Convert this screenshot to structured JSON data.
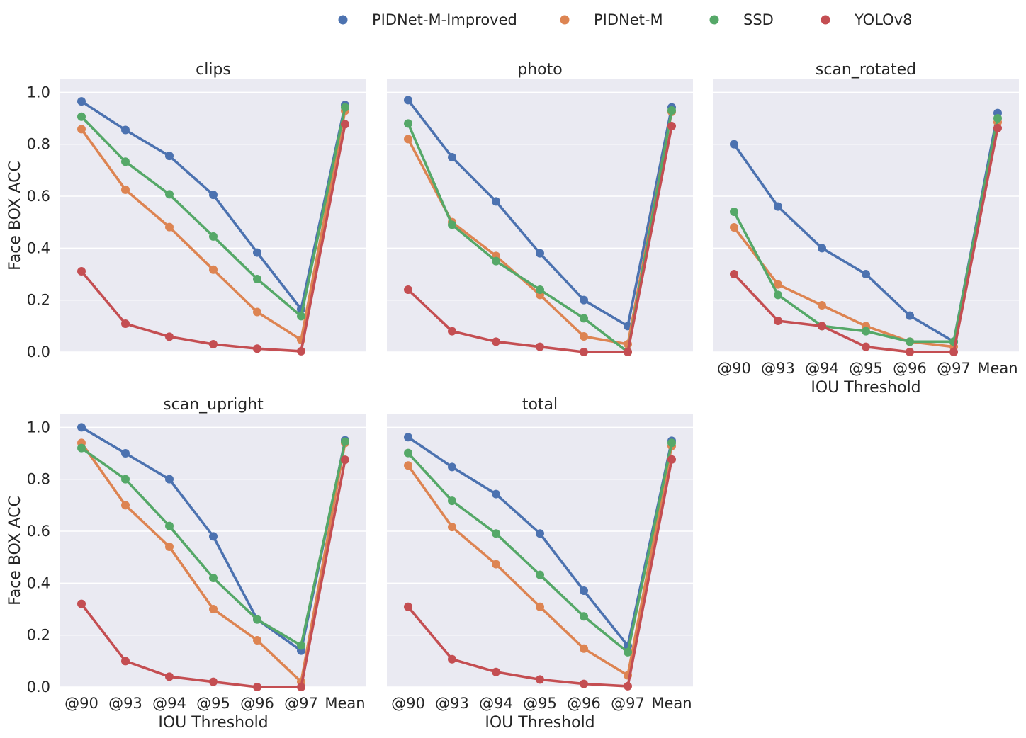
{
  "chart_data": {
    "type": "line",
    "categories": [
      "@90",
      "@93",
      "@94",
      "@95",
      "@96",
      "@97",
      "Mean"
    ],
    "xlabel": "IOU Threshold",
    "ylabel": "Face BOX ACC",
    "ylim": [
      0,
      1.05
    ],
    "yticks": [
      "0.0",
      "0.2",
      "0.4",
      "0.6",
      "0.8",
      "1.0"
    ],
    "grid": true,
    "legend_position": "top-center",
    "series_meta": [
      {
        "name": "PIDNet-M-Improved",
        "color": "#4c72b0"
      },
      {
        "name": "PIDNet-M",
        "color": "#dd8452"
      },
      {
        "name": "SSD",
        "color": "#55a868"
      },
      {
        "name": "YOLOv8",
        "color": "#c44e52"
      }
    ],
    "panels": [
      {
        "title": "clips",
        "series": [
          {
            "name": "PIDNet-M-Improved",
            "values": [
              0.965,
              0.855,
              0.755,
              0.605,
              0.383,
              0.165,
              0.951
            ]
          },
          {
            "name": "PIDNet-M",
            "values": [
              0.858,
              0.625,
              0.481,
              0.317,
              0.154,
              0.047,
              0.929
            ]
          },
          {
            "name": "SSD",
            "values": [
              0.906,
              0.733,
              0.607,
              0.445,
              0.281,
              0.138,
              0.942
            ]
          },
          {
            "name": "YOLOv8",
            "values": [
              0.311,
              0.109,
              0.059,
              0.03,
              0.013,
              0.003,
              0.877
            ]
          }
        ]
      },
      {
        "title": "photo",
        "series": [
          {
            "name": "PIDNet-M-Improved",
            "values": [
              0.97,
              0.75,
              0.58,
              0.38,
              0.2,
              0.1,
              0.942
            ]
          },
          {
            "name": "PIDNet-M",
            "values": [
              0.82,
              0.5,
              0.37,
              0.22,
              0.06,
              0.03,
              0.925
            ]
          },
          {
            "name": "SSD",
            "values": [
              0.88,
              0.49,
              0.35,
              0.24,
              0.13,
              0.0,
              0.93
            ]
          },
          {
            "name": "YOLOv8",
            "values": [
              0.24,
              0.08,
              0.04,
              0.02,
              0.0,
              0.0,
              0.87
            ]
          }
        ]
      },
      {
        "title": "scan_rotated",
        "series": [
          {
            "name": "PIDNet-M-Improved",
            "values": [
              0.8,
              0.56,
              0.4,
              0.3,
              0.14,
              0.04,
              0.92
            ]
          },
          {
            "name": "PIDNet-M",
            "values": [
              0.48,
              0.26,
              0.18,
              0.1,
              0.04,
              0.02,
              0.885
            ]
          },
          {
            "name": "SSD",
            "values": [
              0.54,
              0.22,
              0.1,
              0.08,
              0.04,
              0.04,
              0.9
            ]
          },
          {
            "name": "YOLOv8",
            "values": [
              0.3,
              0.12,
              0.1,
              0.02,
              0.0,
              0.0,
              0.862
            ]
          }
        ]
      },
      {
        "title": "scan_upright",
        "series": [
          {
            "name": "PIDNet-M-Improved",
            "values": [
              1.0,
              0.9,
              0.8,
              0.58,
              0.26,
              0.14,
              0.95
            ]
          },
          {
            "name": "PIDNet-M",
            "values": [
              0.94,
              0.7,
              0.54,
              0.3,
              0.18,
              0.02,
              0.94
            ]
          },
          {
            "name": "SSD",
            "values": [
              0.92,
              0.8,
              0.62,
              0.42,
              0.26,
              0.16,
              0.945
            ]
          },
          {
            "name": "YOLOv8",
            "values": [
              0.32,
              0.1,
              0.04,
              0.02,
              0.0,
              0.0,
              0.875
            ]
          }
        ]
      },
      {
        "title": "total",
        "series": [
          {
            "name": "PIDNet-M-Improved",
            "values": [
              0.962,
              0.847,
              0.743,
              0.591,
              0.371,
              0.159,
              0.948
            ]
          },
          {
            "name": "PIDNet-M",
            "values": [
              0.853,
              0.616,
              0.473,
              0.309,
              0.148,
              0.045,
              0.928
            ]
          },
          {
            "name": "SSD",
            "values": [
              0.901,
              0.717,
              0.591,
              0.432,
              0.272,
              0.134,
              0.94
            ]
          },
          {
            "name": "YOLOv8",
            "values": [
              0.309,
              0.107,
              0.058,
              0.029,
              0.012,
              0.003,
              0.876
            ]
          }
        ]
      }
    ]
  }
}
